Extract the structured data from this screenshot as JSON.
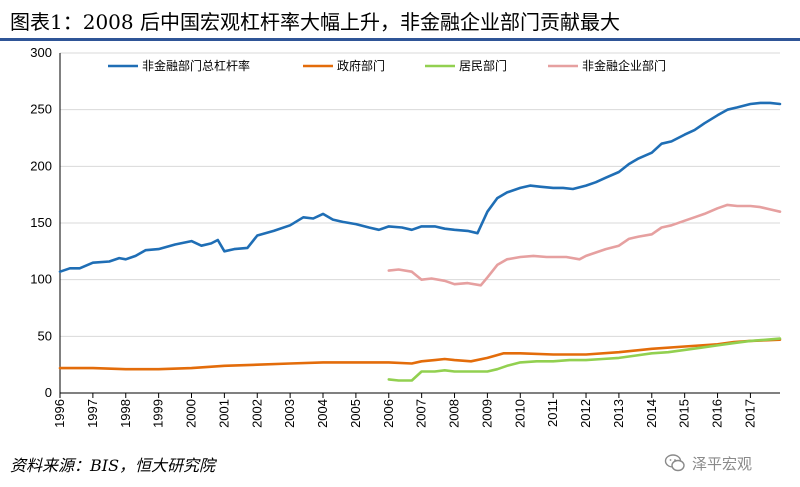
{
  "header": {
    "title": "图表1：2008 后中国宏观杠杆率大幅上升，非金融企业部门贡献最大"
  },
  "footer": {
    "source": "资料来源：BIS，恒大研究院",
    "watermark": "泽平宏观"
  },
  "icons": {
    "watermark": "wechat-icon"
  },
  "chart_data": {
    "type": "line",
    "ylim": [
      0,
      300
    ],
    "yticks": [
      0,
      50,
      100,
      150,
      200,
      250,
      300
    ],
    "xlim": [
      1996,
      2017.9
    ],
    "xtick_labels": [
      "1996",
      "1997",
      "1998",
      "1999",
      "2000",
      "2001",
      "2002",
      "2003",
      "2004",
      "2005",
      "2006",
      "2007",
      "2008",
      "2009",
      "2010",
      "2011",
      "2012",
      "2013",
      "2014",
      "2015",
      "2016",
      "2017"
    ],
    "grid": "horizontal",
    "legend_position": "top",
    "series": [
      {
        "name": "非金融部门总杠杆率",
        "color": "#1f6eb5",
        "points": [
          [
            1996.0,
            107
          ],
          [
            1996.3,
            110
          ],
          [
            1996.6,
            110
          ],
          [
            1997.0,
            115
          ],
          [
            1997.5,
            116
          ],
          [
            1997.8,
            119
          ],
          [
            1998.0,
            118
          ],
          [
            1998.3,
            121
          ],
          [
            1998.6,
            126
          ],
          [
            1999.0,
            127
          ],
          [
            1999.5,
            131
          ],
          [
            2000.0,
            134
          ],
          [
            2000.3,
            130
          ],
          [
            2000.6,
            132
          ],
          [
            2000.8,
            135
          ],
          [
            2001.0,
            125
          ],
          [
            2001.3,
            127
          ],
          [
            2001.7,
            128
          ],
          [
            2002.0,
            139
          ],
          [
            2002.5,
            143
          ],
          [
            2003.0,
            148
          ],
          [
            2003.4,
            155
          ],
          [
            2003.7,
            154
          ],
          [
            2004.0,
            158
          ],
          [
            2004.3,
            153
          ],
          [
            2004.6,
            151
          ],
          [
            2005.0,
            149
          ],
          [
            2005.4,
            146
          ],
          [
            2005.7,
            144
          ],
          [
            2006.0,
            147
          ],
          [
            2006.4,
            146
          ],
          [
            2006.7,
            144
          ],
          [
            2007.0,
            147
          ],
          [
            2007.4,
            147
          ],
          [
            2007.7,
            145
          ],
          [
            2008.0,
            144
          ],
          [
            2008.4,
            143
          ],
          [
            2008.7,
            141
          ],
          [
            2009.0,
            160
          ],
          [
            2009.3,
            172
          ],
          [
            2009.6,
            177
          ],
          [
            2010.0,
            181
          ],
          [
            2010.3,
            183
          ],
          [
            2010.6,
            182
          ],
          [
            2011.0,
            181
          ],
          [
            2011.3,
            181
          ],
          [
            2011.6,
            180
          ],
          [
            2012.0,
            183
          ],
          [
            2012.3,
            186
          ],
          [
            2012.6,
            190
          ],
          [
            2013.0,
            195
          ],
          [
            2013.3,
            202
          ],
          [
            2013.6,
            207
          ],
          [
            2014.0,
            212
          ],
          [
            2014.3,
            220
          ],
          [
            2014.6,
            222
          ],
          [
            2015.0,
            228
          ],
          [
            2015.3,
            232
          ],
          [
            2015.6,
            238
          ],
          [
            2016.0,
            245
          ],
          [
            2016.3,
            250
          ],
          [
            2016.6,
            252
          ],
          [
            2017.0,
            255
          ],
          [
            2017.3,
            256
          ],
          [
            2017.6,
            256
          ],
          [
            2017.9,
            255
          ]
        ]
      },
      {
        "name": "政府部门",
        "color": "#e36c0a",
        "points": [
          [
            1996.0,
            22
          ],
          [
            1997.0,
            22
          ],
          [
            1998.0,
            21
          ],
          [
            1999.0,
            21
          ],
          [
            2000.0,
            22
          ],
          [
            2001.0,
            24
          ],
          [
            2002.0,
            25
          ],
          [
            2003.0,
            26
          ],
          [
            2004.0,
            27
          ],
          [
            2005.0,
            27
          ],
          [
            2006.0,
            27
          ],
          [
            2006.7,
            26
          ],
          [
            2007.0,
            28
          ],
          [
            2007.4,
            29
          ],
          [
            2007.7,
            30
          ],
          [
            2008.0,
            29
          ],
          [
            2008.5,
            28
          ],
          [
            2009.0,
            31
          ],
          [
            2009.5,
            35
          ],
          [
            2010.0,
            35
          ],
          [
            2011.0,
            34
          ],
          [
            2012.0,
            34
          ],
          [
            2013.0,
            36
          ],
          [
            2014.0,
            39
          ],
          [
            2015.0,
            41
          ],
          [
            2016.0,
            43
          ],
          [
            2016.5,
            45
          ],
          [
            2017.0,
            46
          ],
          [
            2017.9,
            47
          ]
        ]
      },
      {
        "name": "居民部门",
        "color": "#92d050",
        "points": [
          [
            2006.0,
            12
          ],
          [
            2006.3,
            11
          ],
          [
            2006.7,
            11
          ],
          [
            2007.0,
            19
          ],
          [
            2007.4,
            19
          ],
          [
            2007.7,
            20
          ],
          [
            2008.0,
            19
          ],
          [
            2008.5,
            19
          ],
          [
            2009.0,
            19
          ],
          [
            2009.3,
            21
          ],
          [
            2009.6,
            24
          ],
          [
            2010.0,
            27
          ],
          [
            2010.5,
            28
          ],
          [
            2011.0,
            28
          ],
          [
            2011.5,
            29
          ],
          [
            2012.0,
            29
          ],
          [
            2012.5,
            30
          ],
          [
            2013.0,
            31
          ],
          [
            2013.5,
            33
          ],
          [
            2014.0,
            35
          ],
          [
            2014.5,
            36
          ],
          [
            2015.0,
            38
          ],
          [
            2015.5,
            40
          ],
          [
            2016.0,
            42
          ],
          [
            2016.5,
            44
          ],
          [
            2017.0,
            46
          ],
          [
            2017.5,
            47
          ],
          [
            2017.9,
            48
          ]
        ]
      },
      {
        "name": "非金融企业部门",
        "color": "#e6a0a0",
        "points": [
          [
            2006.0,
            108
          ],
          [
            2006.3,
            109
          ],
          [
            2006.7,
            107
          ],
          [
            2007.0,
            100
          ],
          [
            2007.3,
            101
          ],
          [
            2007.7,
            99
          ],
          [
            2008.0,
            96
          ],
          [
            2008.4,
            97
          ],
          [
            2008.8,
            95
          ],
          [
            2009.0,
            102
          ],
          [
            2009.3,
            113
          ],
          [
            2009.6,
            118
          ],
          [
            2010.0,
            120
          ],
          [
            2010.4,
            121
          ],
          [
            2010.8,
            120
          ],
          [
            2011.0,
            120
          ],
          [
            2011.4,
            120
          ],
          [
            2011.8,
            118
          ],
          [
            2012.0,
            121
          ],
          [
            2012.3,
            124
          ],
          [
            2012.6,
            127
          ],
          [
            2013.0,
            130
          ],
          [
            2013.3,
            136
          ],
          [
            2013.6,
            138
          ],
          [
            2014.0,
            140
          ],
          [
            2014.3,
            146
          ],
          [
            2014.6,
            148
          ],
          [
            2015.0,
            152
          ],
          [
            2015.3,
            155
          ],
          [
            2015.6,
            158
          ],
          [
            2016.0,
            163
          ],
          [
            2016.3,
            166
          ],
          [
            2016.6,
            165
          ],
          [
            2017.0,
            165
          ],
          [
            2017.3,
            164
          ],
          [
            2017.6,
            162
          ],
          [
            2017.9,
            160
          ]
        ]
      }
    ]
  }
}
